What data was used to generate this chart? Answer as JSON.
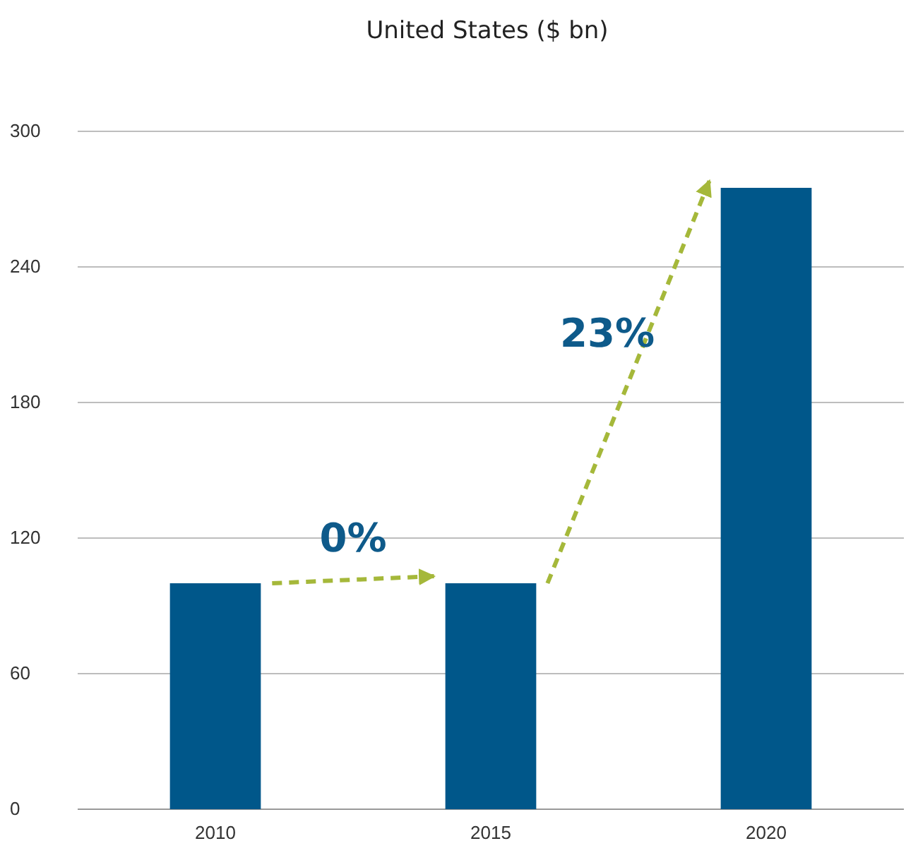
{
  "chart_data": {
    "type": "bar",
    "title": "United States ($ bn)",
    "categories": [
      "2010",
      "2015",
      "2020"
    ],
    "values": [
      100,
      100,
      275
    ],
    "color": "#00578a",
    "ylim": [
      0,
      300
    ],
    "yticks": [
      0,
      60,
      120,
      180,
      240,
      300
    ],
    "grid": "y",
    "annotations": [
      "0%",
      "23%"
    ]
  }
}
